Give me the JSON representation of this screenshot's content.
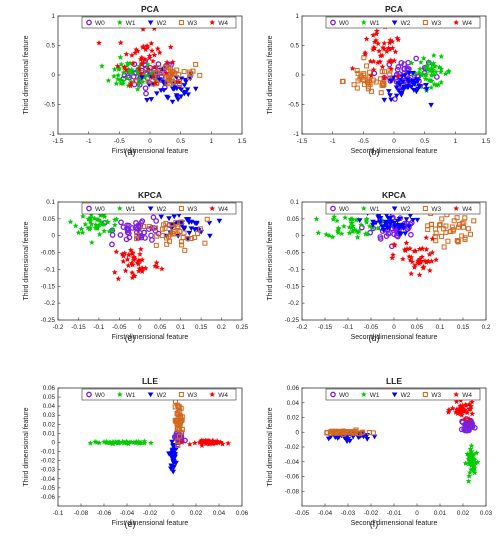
{
  "chart_data": [
    {
      "panel_label": "(a)",
      "title": "PCA",
      "type": "scatter",
      "xlabel": "First dimensional feature",
      "ylabel": "Third dimensional feature",
      "xlim": [
        -1.5,
        1.5
      ],
      "ylim": [
        -1.0,
        1.0
      ],
      "xticks": [
        "-1.5",
        "-1",
        "-0.5",
        "0",
        "0.5",
        "1",
        "1.5"
      ],
      "yticks": [
        "-1",
        "-0.5",
        "0",
        "0.5",
        "1"
      ],
      "series": [
        {
          "name": "W0",
          "center": [
            0.0,
            0.0
          ],
          "spread": [
            0.35,
            0.2
          ],
          "n": 45
        },
        {
          "name": "W1",
          "center": [
            -0.35,
            0.0
          ],
          "spread": [
            0.35,
            0.2
          ],
          "n": 45
        },
        {
          "name": "W2",
          "center": [
            0.35,
            -0.2
          ],
          "spread": [
            0.35,
            0.25
          ],
          "n": 45
        },
        {
          "name": "W3",
          "center": [
            0.35,
            0.0
          ],
          "spread": [
            0.45,
            0.2
          ],
          "n": 40
        },
        {
          "name": "W4",
          "center": [
            -0.1,
            0.3
          ],
          "spread": [
            0.35,
            0.35
          ],
          "n": 45
        }
      ]
    },
    {
      "panel_label": "(b)",
      "title": "PCA",
      "type": "scatter",
      "xlabel": "Second dimensional feature",
      "ylabel": "Third dimensional feature",
      "xlim": [
        -1.5,
        1.5
      ],
      "ylim": [
        -1.0,
        1.0
      ],
      "xticks": [
        "-1.5",
        "-1",
        "-0.5",
        "0",
        "0.5",
        "1",
        "1.5"
      ],
      "yticks": [
        "-1",
        "-0.5",
        "0",
        "0.5",
        "1"
      ],
      "series": [
        {
          "name": "W0",
          "center": [
            0.2,
            0.0
          ],
          "spread": [
            0.3,
            0.2
          ],
          "n": 45
        },
        {
          "name": "W1",
          "center": [
            0.6,
            0.05
          ],
          "spread": [
            0.3,
            0.2
          ],
          "n": 45
        },
        {
          "name": "W2",
          "center": [
            0.2,
            -0.2
          ],
          "spread": [
            0.3,
            0.2
          ],
          "n": 45
        },
        {
          "name": "W3",
          "center": [
            -0.4,
            -0.1
          ],
          "spread": [
            0.35,
            0.2
          ],
          "n": 40
        },
        {
          "name": "W4",
          "center": [
            -0.2,
            0.3
          ],
          "spread": [
            0.3,
            0.35
          ],
          "n": 45
        }
      ]
    },
    {
      "panel_label": "(c)",
      "title": "KPCA",
      "type": "scatter",
      "xlabel": "First dimensional feature",
      "ylabel": "Third dimensional feature",
      "xlim": [
        -0.2,
        0.25
      ],
      "ylim": [
        -0.25,
        0.1
      ],
      "xticks": [
        "-0.2",
        "-0.15",
        "-0.1",
        "-0.05",
        "0",
        "0.05",
        "0.1",
        "0.15",
        "0.2",
        "0.25"
      ],
      "yticks": [
        "-0.25",
        "-0.2",
        "-0.15",
        "-0.1",
        "-0.05",
        "0",
        "0.05",
        "0.1"
      ],
      "series": [
        {
          "name": "W0",
          "center": [
            0.0,
            0.02
          ],
          "spread": [
            0.05,
            0.03
          ],
          "n": 45
        },
        {
          "name": "W1",
          "center": [
            -0.1,
            0.04
          ],
          "spread": [
            0.05,
            0.025
          ],
          "n": 45
        },
        {
          "name": "W2",
          "center": [
            0.1,
            0.03
          ],
          "spread": [
            0.05,
            0.03
          ],
          "n": 40
        },
        {
          "name": "W3",
          "center": [
            0.08,
            0.0
          ],
          "spread": [
            0.07,
            0.04
          ],
          "n": 40
        },
        {
          "name": "W4",
          "center": [
            -0.01,
            -0.08
          ],
          "spread": [
            0.05,
            0.05
          ],
          "n": 45
        }
      ]
    },
    {
      "panel_label": "(d)",
      "title": "KPCA",
      "type": "scatter",
      "xlabel": "Second dimensional feature",
      "ylabel": "Third dimensional feature",
      "xlim": [
        -0.2,
        0.2
      ],
      "ylim": [
        -0.25,
        0.1
      ],
      "xticks": [
        "-0.2",
        "-0.15",
        "-0.1",
        "-0.05",
        "0",
        "0.05",
        "0.1",
        "0.15",
        "0.2"
      ],
      "yticks": [
        "-0.25",
        "-0.2",
        "-0.15",
        "-0.1",
        "-0.05",
        "0",
        "0.05",
        "0.1"
      ],
      "series": [
        {
          "name": "W0",
          "center": [
            0.0,
            0.02
          ],
          "spread": [
            0.04,
            0.03
          ],
          "n": 45
        },
        {
          "name": "W1",
          "center": [
            -0.09,
            0.03
          ],
          "spread": [
            0.05,
            0.03
          ],
          "n": 45
        },
        {
          "name": "W2",
          "center": [
            -0.02,
            0.04
          ],
          "spread": [
            0.05,
            0.03
          ],
          "n": 45
        },
        {
          "name": "W3",
          "center": [
            0.12,
            0.02
          ],
          "spread": [
            0.04,
            0.04
          ],
          "n": 40
        },
        {
          "name": "W4",
          "center": [
            0.05,
            -0.07
          ],
          "spread": [
            0.04,
            0.05
          ],
          "n": 45
        }
      ]
    },
    {
      "panel_label": "(e)",
      "title": "LLE",
      "type": "scatter",
      "xlabel": "First dimensional feature",
      "ylabel": "Third dimensional feature",
      "xlim": [
        -0.1,
        0.06
      ],
      "ylim": [
        -0.07,
        0.06
      ],
      "xticks": [
        "-0.1",
        "-0.08",
        "-0.06",
        "-0.04",
        "-0.02",
        "0",
        "0.02",
        "0.04",
        "0.06"
      ],
      "yticks": [
        "-0.06",
        "-0.05",
        "-0.04",
        "-0.03",
        "-0.02",
        "-0.01",
        "0",
        "0.01",
        "0.02",
        "0.03",
        "0.04",
        "0.05",
        "0.06"
      ],
      "series": [
        {
          "name": "W0",
          "center": [
            0.005,
            0.005
          ],
          "spread": [
            0.004,
            0.005
          ],
          "n": 25
        },
        {
          "name": "W1",
          "center": [
            -0.045,
            0.0
          ],
          "spread": [
            0.02,
            0.001
          ],
          "n": 50
        },
        {
          "name": "W2",
          "center": [
            0.0,
            -0.015
          ],
          "spread": [
            0.002,
            0.012
          ],
          "n": 45
        },
        {
          "name": "W3",
          "center": [
            0.005,
            0.025
          ],
          "spread": [
            0.003,
            0.015
          ],
          "n": 40
        },
        {
          "name": "W4",
          "center": [
            0.035,
            0.0
          ],
          "spread": [
            0.012,
            0.002
          ],
          "n": 45
        }
      ]
    },
    {
      "panel_label": "(f)",
      "title": "LLE",
      "type": "scatter",
      "xlabel": "Second dimensional feature",
      "ylabel": "Third dimensional feature",
      "xlim": [
        -0.05,
        0.03
      ],
      "ylim": [
        -0.1,
        0.06
      ],
      "xticks": [
        "-0.05",
        "-0.04",
        "-0.03",
        "-0.02",
        "-0.01",
        "0",
        "0.01",
        "0.02",
        "0.03"
      ],
      "yticks": [
        "-0.08",
        "-0.06",
        "-0.04",
        "-0.02",
        "0",
        "0.02",
        "0.04",
        "0.06"
      ],
      "series": [
        {
          "name": "W0",
          "center": [
            0.022,
            0.01
          ],
          "spread": [
            0.002,
            0.006
          ],
          "n": 35
        },
        {
          "name": "W1",
          "center": [
            0.024,
            -0.04
          ],
          "spread": [
            0.002,
            0.015
          ],
          "n": 45
        },
        {
          "name": "W2",
          "center": [
            -0.03,
            -0.005
          ],
          "spread": [
            0.007,
            0.005
          ],
          "n": 40
        },
        {
          "name": "W3",
          "center": [
            -0.032,
            0.0
          ],
          "spread": [
            0.008,
            0.002
          ],
          "n": 40
        },
        {
          "name": "W4",
          "center": [
            0.02,
            0.03
          ],
          "spread": [
            0.004,
            0.008
          ],
          "n": 45
        }
      ]
    }
  ],
  "colors": {
    "W0": "#7a1fe0",
    "W1": "#00cc00",
    "W2": "#0000ff",
    "W3": "#d2691e",
    "W4": "#ff0000"
  },
  "markers": {
    "W0": "circle",
    "W1": "star",
    "W2": "triangle-down",
    "W3": "square",
    "W4": "star"
  }
}
